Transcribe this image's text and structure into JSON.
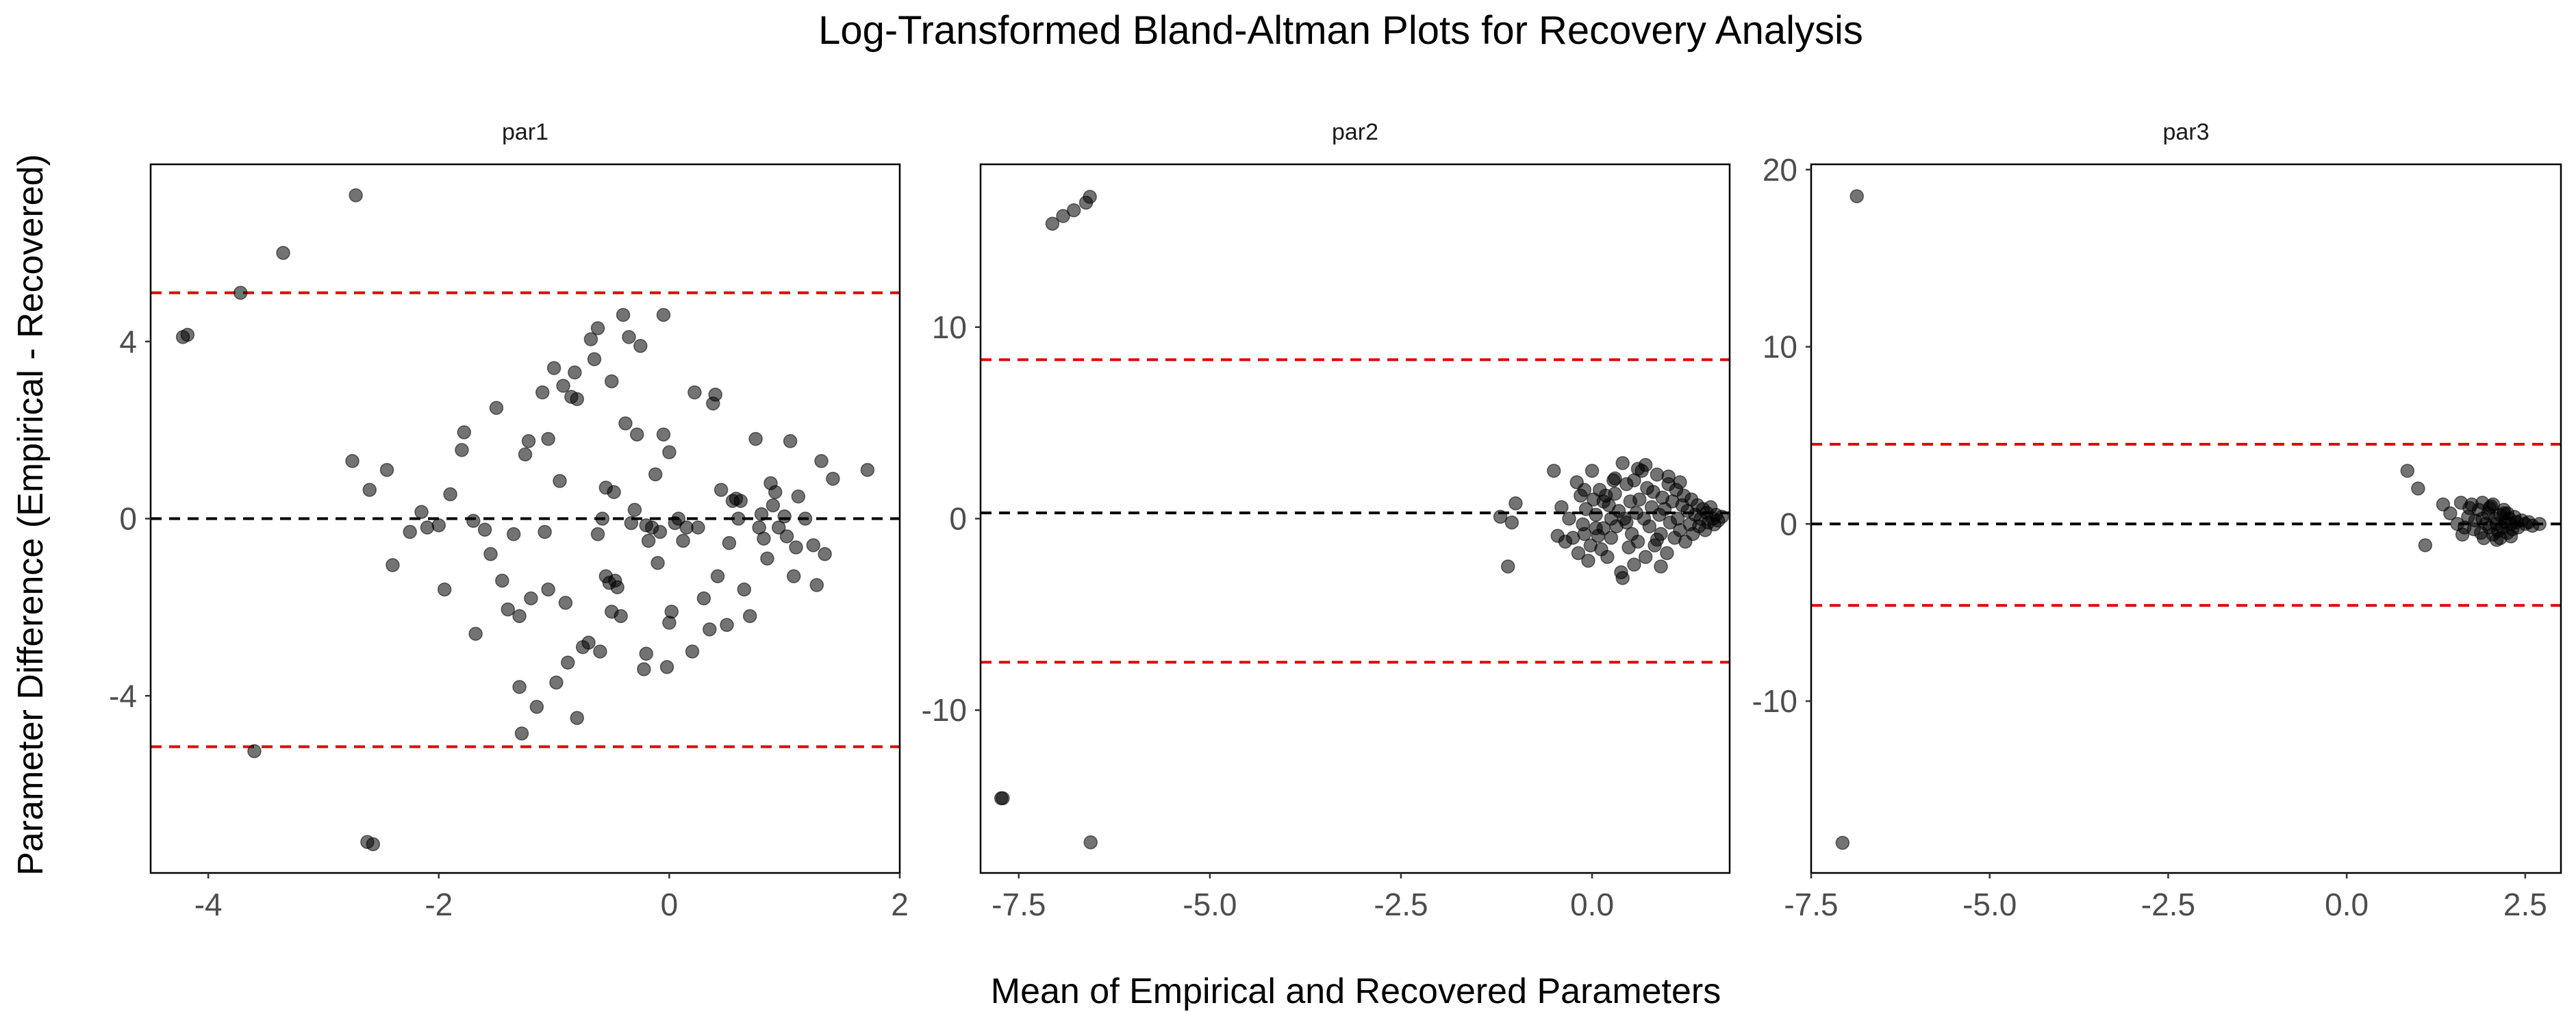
{
  "chart_data": {
    "type": "scatter",
    "title": "Log-Transformed Bland-Altman Plots for Recovery Analysis",
    "xlabel": "Mean of Empirical and Recovered Parameters",
    "ylabel": "Parameter Difference (Empirical - Recovered)",
    "facets": [
      {
        "name": "par1",
        "xlim": [
          -4.5,
          2
        ],
        "ylim": [
          -8,
          8
        ],
        "x_ticks": [
          -4,
          -2,
          0,
          2
        ],
        "x_tick_labels": [
          "-4",
          "-2",
          "0",
          "2"
        ],
        "y_ticks": [
          -4,
          0,
          4
        ],
        "y_tick_labels": [
          "-4",
          "0",
          "4"
        ],
        "mean_line": 0,
        "loa_upper": 5.1,
        "loa_lower": -5.15,
        "points": [
          [
            -4.22,
            4.1
          ],
          [
            -4.18,
            4.15
          ],
          [
            -3.72,
            5.1
          ],
          [
            -3.35,
            6.0
          ],
          [
            -2.72,
            7.3
          ],
          [
            -3.6,
            -5.25
          ],
          [
            -2.62,
            -7.3
          ],
          [
            -2.57,
            -7.35
          ],
          [
            -2.75,
            1.3
          ],
          [
            -2.45,
            1.1
          ],
          [
            -2.6,
            0.65
          ],
          [
            -2.4,
            -1.05
          ],
          [
            -2.25,
            -0.3
          ],
          [
            -2.15,
            0.15
          ],
          [
            -2.1,
            -0.2
          ],
          [
            -2.0,
            -0.15
          ],
          [
            -1.95,
            -1.6
          ],
          [
            -1.9,
            0.55
          ],
          [
            -1.8,
            1.55
          ],
          [
            -1.78,
            1.95
          ],
          [
            -1.7,
            -0.05
          ],
          [
            -1.68,
            -2.6
          ],
          [
            -1.6,
            -0.25
          ],
          [
            -1.55,
            -0.8
          ],
          [
            -1.5,
            2.5
          ],
          [
            -1.45,
            -1.4
          ],
          [
            -1.4,
            -2.05
          ],
          [
            -1.35,
            -0.35
          ],
          [
            -1.3,
            -2.2
          ],
          [
            -1.3,
            -3.8
          ],
          [
            -1.28,
            -4.85
          ],
          [
            -1.25,
            1.45
          ],
          [
            -1.22,
            1.75
          ],
          [
            -1.2,
            -1.8
          ],
          [
            -1.15,
            -4.25
          ],
          [
            -1.1,
            2.85
          ],
          [
            -1.08,
            -0.3
          ],
          [
            -1.05,
            1.8
          ],
          [
            -1.05,
            -1.6
          ],
          [
            -1.0,
            3.4
          ],
          [
            -0.98,
            -3.7
          ],
          [
            -0.95,
            0.85
          ],
          [
            -0.92,
            3.0
          ],
          [
            -0.9,
            -1.9
          ],
          [
            -0.88,
            -3.25
          ],
          [
            -0.85,
            2.75
          ],
          [
            -0.82,
            3.3
          ],
          [
            -0.8,
            2.7
          ],
          [
            -0.8,
            -4.5
          ],
          [
            -0.75,
            -2.9
          ],
          [
            -0.7,
            -2.8
          ],
          [
            -0.68,
            4.05
          ],
          [
            -0.65,
            3.6
          ],
          [
            -0.62,
            4.3
          ],
          [
            -0.62,
            -0.35
          ],
          [
            -0.6,
            -3.0
          ],
          [
            -0.58,
            0.0
          ],
          [
            -0.55,
            0.7
          ],
          [
            -0.55,
            -1.3
          ],
          [
            -0.52,
            -1.45
          ],
          [
            -0.5,
            -2.1
          ],
          [
            -0.5,
            3.1
          ],
          [
            -0.48,
            0.6
          ],
          [
            -0.47,
            -1.4
          ],
          [
            -0.45,
            -1.55
          ],
          [
            -0.42,
            -2.2
          ],
          [
            -0.4,
            4.6
          ],
          [
            -0.38,
            2.15
          ],
          [
            -0.35,
            4.1
          ],
          [
            -0.33,
            -0.1
          ],
          [
            -0.3,
            0.2
          ],
          [
            -0.28,
            1.9
          ],
          [
            -0.25,
            3.9
          ],
          [
            -0.22,
            -3.4
          ],
          [
            -0.2,
            -3.05
          ],
          [
            -0.2,
            -0.15
          ],
          [
            -0.18,
            -0.5
          ],
          [
            -0.15,
            -0.2
          ],
          [
            -0.12,
            1.0
          ],
          [
            -0.1,
            -1.0
          ],
          [
            -0.08,
            -0.3
          ],
          [
            -0.05,
            1.9
          ],
          [
            -0.05,
            4.6
          ],
          [
            -0.02,
            -3.35
          ],
          [
            0.0,
            1.5
          ],
          [
            0.0,
            -2.35
          ],
          [
            0.02,
            -2.1
          ],
          [
            0.05,
            -0.1
          ],
          [
            0.08,
            0.0
          ],
          [
            0.12,
            -0.5
          ],
          [
            0.15,
            -0.2
          ],
          [
            0.2,
            -3.0
          ],
          [
            0.22,
            2.85
          ],
          [
            0.25,
            -0.2
          ],
          [
            0.3,
            -1.8
          ],
          [
            0.35,
            -2.5
          ],
          [
            0.38,
            2.6
          ],
          [
            0.4,
            2.8
          ],
          [
            0.42,
            -1.3
          ],
          [
            0.45,
            0.65
          ],
          [
            0.5,
            -2.4
          ],
          [
            0.52,
            -0.55
          ],
          [
            0.55,
            0.4
          ],
          [
            0.58,
            0.45
          ],
          [
            0.6,
            0.0
          ],
          [
            0.62,
            0.4
          ],
          [
            0.65,
            -1.6
          ],
          [
            0.7,
            -2.2
          ],
          [
            0.75,
            1.8
          ],
          [
            0.78,
            -0.2
          ],
          [
            0.8,
            0.1
          ],
          [
            0.82,
            -0.45
          ],
          [
            0.85,
            -0.9
          ],
          [
            0.88,
            0.8
          ],
          [
            0.9,
            0.3
          ],
          [
            0.92,
            0.6
          ],
          [
            0.95,
            -0.2
          ],
          [
            1.0,
            0.05
          ],
          [
            1.02,
            -0.4
          ],
          [
            1.05,
            1.75
          ],
          [
            1.08,
            -1.3
          ],
          [
            1.1,
            -0.65
          ],
          [
            1.12,
            0.5
          ],
          [
            1.18,
            0.0
          ],
          [
            1.25,
            -0.6
          ],
          [
            1.28,
            -1.5
          ],
          [
            1.32,
            1.3
          ],
          [
            1.35,
            -0.8
          ],
          [
            1.42,
            0.9
          ],
          [
            1.72,
            1.1
          ]
        ]
      },
      {
        "name": "par2",
        "xlim": [
          -8.0,
          1.8
        ],
        "ylim": [
          -18.5,
          18.5
        ],
        "x_ticks": [
          -7.5,
          -5.0,
          -2.5,
          0.0
        ],
        "x_tick_labels": [
          "-7.5",
          "-5.0",
          "-2.5",
          "0.0"
        ],
        "y_ticks": [
          -10,
          0,
          10
        ],
        "y_tick_labels": [
          "-10",
          "0",
          "10"
        ],
        "mean_line": 0.3,
        "loa_upper": 8.3,
        "loa_lower": -7.5,
        "points": [
          [
            -7.06,
            15.4
          ],
          [
            -6.92,
            15.8
          ],
          [
            -6.78,
            16.1
          ],
          [
            -6.62,
            16.5
          ],
          [
            -6.57,
            16.8
          ],
          [
            -7.73,
            -14.6
          ],
          [
            -7.71,
            -14.6
          ],
          [
            -6.56,
            -16.9
          ],
          [
            -1.2,
            0.1
          ],
          [
            -1.0,
            0.8
          ],
          [
            -1.05,
            -0.2
          ],
          [
            -1.1,
            -2.5
          ],
          [
            -0.5,
            2.5
          ],
          [
            -0.45,
            -0.9
          ],
          [
            -0.4,
            0.6
          ],
          [
            -0.35,
            -1.2
          ],
          [
            -0.3,
            0.0
          ],
          [
            -0.25,
            -1.0
          ],
          [
            -0.2,
            1.9
          ],
          [
            -0.18,
            -1.8
          ],
          [
            -0.15,
            1.2
          ],
          [
            -0.12,
            -0.3
          ],
          [
            -0.1,
            -0.8
          ],
          [
            -0.08,
            0.5
          ],
          [
            -0.05,
            -2.2
          ],
          [
            -0.02,
            -1.4
          ],
          [
            0.0,
            2.5
          ],
          [
            0.02,
            1.0
          ],
          [
            0.05,
            0.2
          ],
          [
            0.08,
            -0.9
          ],
          [
            0.1,
            1.5
          ],
          [
            0.12,
            -1.6
          ],
          [
            0.15,
            -0.5
          ],
          [
            0.18,
            1.2
          ],
          [
            0.2,
            -2.0
          ],
          [
            0.22,
            0.7
          ],
          [
            0.25,
            -1.0
          ],
          [
            0.28,
            2.0
          ],
          [
            0.3,
            1.3
          ],
          [
            0.32,
            -0.4
          ],
          [
            0.35,
            0.4
          ],
          [
            0.38,
            -2.8
          ],
          [
            0.4,
            -3.1
          ],
          [
            0.42,
            0.0
          ],
          [
            0.45,
            1.8
          ],
          [
            0.48,
            -1.5
          ],
          [
            0.5,
            0.9
          ],
          [
            0.52,
            -0.8
          ],
          [
            0.55,
            2.0
          ],
          [
            0.58,
            0.3
          ],
          [
            0.6,
            -1.2
          ],
          [
            0.62,
            1.0
          ],
          [
            0.65,
            2.5
          ],
          [
            0.68,
            0.0
          ],
          [
            0.7,
            -2.0
          ],
          [
            0.72,
            1.6
          ],
          [
            0.75,
            -0.4
          ],
          [
            0.78,
            0.6
          ],
          [
            0.8,
            1.4
          ],
          [
            0.82,
            -1.4
          ],
          [
            0.85,
            2.3
          ],
          [
            0.88,
            0.2
          ],
          [
            0.9,
            -0.8
          ],
          [
            0.92,
            1.1
          ],
          [
            0.95,
            0.5
          ],
          [
            0.98,
            -1.8
          ],
          [
            1.0,
            1.8
          ],
          [
            1.02,
            -0.2
          ],
          [
            1.05,
            0.9
          ],
          [
            1.08,
            -1.0
          ],
          [
            1.1,
            1.5
          ],
          [
            1.12,
            0.0
          ],
          [
            1.15,
            -0.6
          ],
          [
            1.18,
            0.7
          ],
          [
            1.2,
            1.2
          ],
          [
            1.22,
            -1.2
          ],
          [
            1.25,
            0.4
          ],
          [
            1.28,
            -0.3
          ],
          [
            1.3,
            1.0
          ],
          [
            1.32,
            -0.8
          ],
          [
            1.35,
            0.2
          ],
          [
            1.38,
            0.7
          ],
          [
            1.4,
            -0.4
          ],
          [
            1.42,
            0.0
          ],
          [
            1.45,
            0.5
          ],
          [
            1.48,
            -0.6
          ],
          [
            1.5,
            0.3
          ],
          [
            1.52,
            -0.2
          ],
          [
            1.55,
            0.6
          ],
          [
            1.58,
            0.0
          ],
          [
            1.6,
            -0.3
          ],
          [
            1.62,
            0.2
          ],
          [
            1.65,
            -0.1
          ],
          [
            1.7,
            0.1
          ],
          [
            0.6,
            2.6
          ],
          [
            0.3,
            2.1
          ],
          [
            -0.1,
            1.5
          ],
          [
            0.9,
            -2.5
          ],
          [
            0.7,
            2.8
          ],
          [
            1.0,
            2.2
          ],
          [
            0.45,
            -0.2
          ],
          [
            0.25,
            0.0
          ],
          [
            0.15,
            0.9
          ],
          [
            0.55,
            -2.4
          ],
          [
            0.85,
            -1.1
          ],
          [
            1.15,
            1.9
          ],
          [
            0.4,
            2.9
          ],
          [
            0.05,
            -0.5
          ]
        ]
      },
      {
        "name": "par3",
        "xlim": [
          -7.5,
          3.0
        ],
        "ylim": [
          -19.7,
          20.3
        ],
        "x_ticks": [
          -7.5,
          -5.0,
          -2.5,
          0.0,
          2.5
        ],
        "x_tick_labels": [
          "-7.5",
          "-5.0",
          "-2.5",
          "0.0",
          "2.5"
        ],
        "y_ticks": [
          -10,
          0,
          10,
          20
        ],
        "y_tick_labels": [
          "-10",
          "0",
          "10",
          "20"
        ],
        "mean_line": 0,
        "loa_upper": 4.5,
        "loa_lower": -4.6,
        "points": [
          [
            -6.86,
            18.5
          ],
          [
            -7.06,
            -18.0
          ],
          [
            0.85,
            3.0
          ],
          [
            1.0,
            2.0
          ],
          [
            1.1,
            -1.2
          ],
          [
            1.35,
            1.1
          ],
          [
            1.45,
            0.6
          ],
          [
            1.55,
            0.0
          ],
          [
            1.6,
            1.2
          ],
          [
            1.62,
            -0.6
          ],
          [
            1.7,
            0.4
          ],
          [
            1.75,
            1.1
          ],
          [
            1.78,
            -0.3
          ],
          [
            1.8,
            0.2
          ],
          [
            1.85,
            0.8
          ],
          [
            1.88,
            -0.5
          ],
          [
            1.9,
            0.3
          ],
          [
            1.92,
            -0.8
          ],
          [
            1.95,
            0.0
          ],
          [
            1.98,
            0.6
          ],
          [
            2.0,
            -0.2
          ],
          [
            2.02,
            1.0
          ],
          [
            2.05,
            -0.6
          ],
          [
            2.08,
            0.3
          ],
          [
            2.1,
            0.0
          ],
          [
            2.12,
            -0.4
          ],
          [
            2.15,
            0.5
          ],
          [
            2.18,
            -0.2
          ],
          [
            2.2,
            0.8
          ],
          [
            2.22,
            0.1
          ],
          [
            2.25,
            -0.5
          ],
          [
            2.28,
            0.3
          ],
          [
            2.3,
            0.0
          ],
          [
            2.32,
            -0.3
          ],
          [
            2.35,
            0.4
          ],
          [
            2.38,
            0.1
          ],
          [
            2.4,
            -0.2
          ],
          [
            2.45,
            0.2
          ],
          [
            2.5,
            0.0
          ],
          [
            2.55,
            0.1
          ],
          [
            2.6,
            -0.1
          ],
          [
            2.7,
            0.0
          ],
          [
            2.0,
            0.9
          ],
          [
            2.1,
            -0.9
          ],
          [
            2.2,
            0.6
          ],
          [
            2.3,
            -0.7
          ],
          [
            1.9,
            1.2
          ],
          [
            2.05,
            1.1
          ],
          [
            2.15,
            -0.8
          ],
          [
            2.25,
            0.6
          ],
          [
            1.65,
            -0.2
          ],
          [
            1.72,
            0.9
          ]
        ]
      }
    ]
  }
}
